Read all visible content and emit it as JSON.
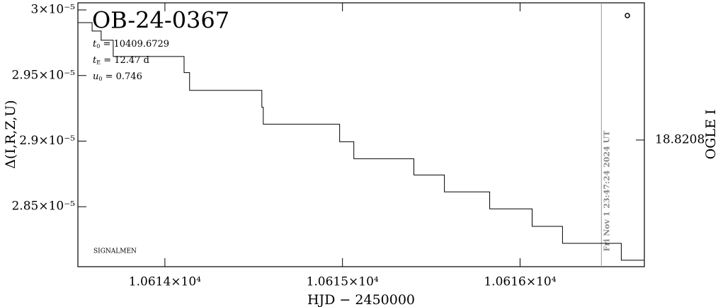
{
  "chart_data": {
    "type": "line",
    "title": "OB-24-0367",
    "x_label": "HJD − 2450000",
    "y_label": "Δ(I,R,Z,U)",
    "y2_label": "OGLE I",
    "parameters": [
      {
        "symbol": "t",
        "sub": "0",
        "text": " = 10409.6729"
      },
      {
        "symbol": "t",
        "sub": "E",
        "text": " = 12.47 d"
      },
      {
        "symbol": "u",
        "sub": "0",
        "text": " = 0.746"
      }
    ],
    "footnote": "SIGNALMEN",
    "now_line": {
      "x": 10616.458,
      "label": "Fri Nov  1 23:47:24 2024 UT"
    },
    "color": "#000000",
    "x": [
      10613.51,
      10613.59,
      10613.59,
      10613.641,
      10613.641,
      10613.709,
      10613.709,
      10614.108,
      10614.108,
      10614.139,
      10614.139,
      10614.546,
      10614.546,
      10614.554,
      10614.554,
      10614.705,
      10614.705,
      10614.984,
      10614.984,
      10615.064,
      10615.064,
      10615.096,
      10615.096,
      10615.402,
      10615.402,
      10615.574,
      10615.574,
      10615.829,
      10615.829,
      10616.068,
      10616.068,
      10616.239,
      10616.239,
      10616.57,
      10616.57,
      10616.697
    ],
    "values": [
      2.9903e-05,
      2.9903e-05,
      2.9839e-05,
      2.9839e-05,
      2.9769e-05,
      2.9769e-05,
      2.9645e-05,
      2.9645e-05,
      2.9522e-05,
      2.9522e-05,
      2.9387e-05,
      2.9387e-05,
      2.9258e-05,
      2.9258e-05,
      2.9129e-05,
      2.9129e-05,
      2.9129e-05,
      2.9129e-05,
      2.8995e-05,
      2.8995e-05,
      2.8866e-05,
      2.8866e-05,
      2.8866e-05,
      2.8866e-05,
      2.8742e-05,
      2.8742e-05,
      2.8613e-05,
      2.8613e-05,
      2.8484e-05,
      2.8484e-05,
      2.835e-05,
      2.835e-05,
      2.8221e-05,
      2.8221e-05,
      2.8092e-05,
      2.8092e-05
    ],
    "xlim": [
      10613.51,
      10616.7
    ],
    "xticks": [
      {
        "value": 10614,
        "label": "1.0614×10⁴"
      },
      {
        "value": 10615,
        "label": "1.0615×10⁴"
      },
      {
        "value": 10616,
        "label": "1.0616×10⁴"
      }
    ],
    "ylim": [
      2.8043e-05,
      3.0054e-05
    ],
    "yticks": [
      {
        "value": 2.85e-05,
        "label": "2.85×10⁻⁵"
      },
      {
        "value": 2.9e-05,
        "label": "2.9×10⁻⁵"
      },
      {
        "value": 2.95e-05,
        "label": "2.95×10⁻⁵"
      },
      {
        "value": 3e-05,
        "label": "3×10⁻⁵"
      }
    ],
    "y2lim": [
      18.84,
      18.8
    ],
    "y2ticks": [
      18.8208
    ],
    "grid": false
  }
}
